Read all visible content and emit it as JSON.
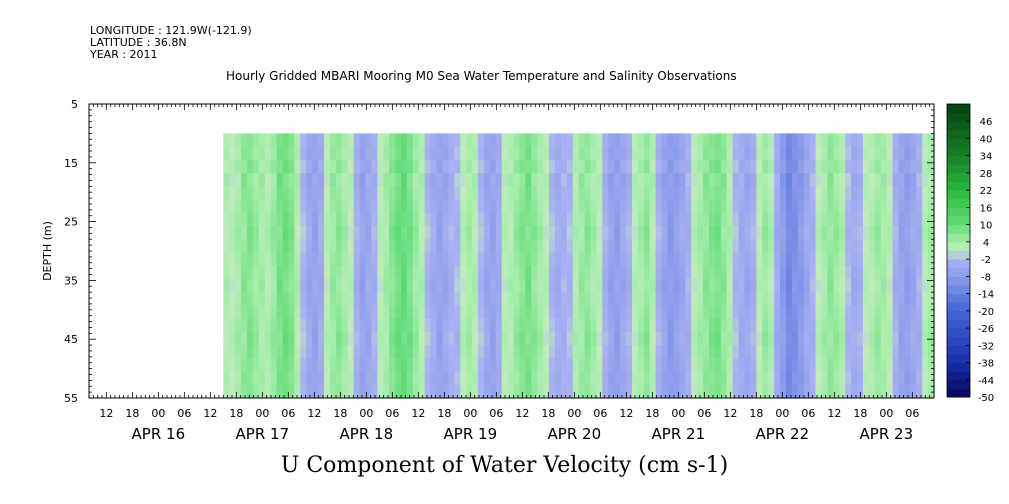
{
  "header": {
    "longitude": "LONGITUDE : 121.9W(-121.9)",
    "latitude": "LATITUDE : 36.8N",
    "year": "YEAR : 2011"
  },
  "title": "Hourly Gridded MBARI Mooring M0 Sea Water Temperature and Salinity Observations",
  "caption": "U Component of Water Velocity (cm s-1)",
  "chart_data": {
    "type": "heatmap",
    "title": "Hourly Gridded MBARI Mooring M0 Sea Water Temperature and Salinity Observations",
    "xlabel": "",
    "ylabel": "DEPTH (m)",
    "ylim": [
      5,
      55
    ],
    "y_inverted": true,
    "y_ticks": [
      "5",
      "15",
      "25",
      "35",
      "45",
      "55"
    ],
    "data_depth_range": [
      10,
      55
    ],
    "x_hour_ticks": [
      "12",
      "18",
      "00",
      "06",
      "12",
      "18",
      "00",
      "06",
      "12",
      "18",
      "00",
      "06",
      "12",
      "18",
      "00",
      "06",
      "12",
      "18",
      "00",
      "06",
      "12",
      "18",
      "00",
      "06",
      "12",
      "18",
      "00",
      "06",
      "12",
      "18",
      "00",
      "06"
    ],
    "x_day_labels": [
      "APR 16",
      "APR 17",
      "APR 18",
      "APR 19",
      "APR 20",
      "APR 21",
      "APR 22",
      "APR 23"
    ],
    "x_start": "APR 15 08:00",
    "data_start": "APR 16 15:00",
    "x_end": "APR 23 11:00",
    "colorbar": {
      "labels": [
        "46",
        "40",
        "34",
        "28",
        "22",
        "16",
        "10",
        "4",
        "-2",
        "-8",
        "-14",
        "-20",
        "-26",
        "-32",
        "-38",
        "-44",
        "-50"
      ],
      "range": [
        -50,
        52
      ],
      "step": 3
    },
    "column_profile": [
      3,
      2,
      4,
      6,
      7,
      5,
      4,
      3,
      5,
      8,
      9,
      7,
      3,
      -2,
      -5,
      -6,
      -4,
      2,
      5,
      6,
      4,
      2,
      -3,
      -6,
      -5,
      -3,
      2,
      4,
      7,
      9,
      10,
      8,
      5,
      3,
      -2,
      -4,
      -6,
      -5,
      -3,
      -2,
      2,
      4,
      3,
      -2,
      -5,
      -6,
      -4,
      2,
      3,
      5,
      7,
      8,
      6,
      4,
      2,
      -2,
      -4,
      -3,
      -2,
      3,
      5,
      6,
      4,
      2,
      -3,
      -6,
      -7,
      -5,
      -3,
      2,
      4,
      6,
      3,
      -3,
      -6,
      -8,
      -7,
      -5,
      -3,
      2,
      4,
      6,
      7,
      8,
      6,
      3,
      -2,
      -4,
      -5,
      -3,
      2,
      5,
      3,
      -4,
      -8,
      -12,
      -10,
      -8,
      -5,
      -3,
      2,
      4,
      6,
      5,
      3,
      -2,
      -4,
      -3,
      2,
      3,
      5,
      4,
      2,
      -3,
      -6,
      -7,
      -5,
      -3,
      2,
      4
    ],
    "depth_profile": [
      0,
      1,
      -1,
      2,
      1,
      0,
      -1,
      -2,
      -1,
      0,
      1,
      2,
      1,
      0,
      -1,
      -2,
      -1,
      0,
      1,
      0
    ]
  }
}
